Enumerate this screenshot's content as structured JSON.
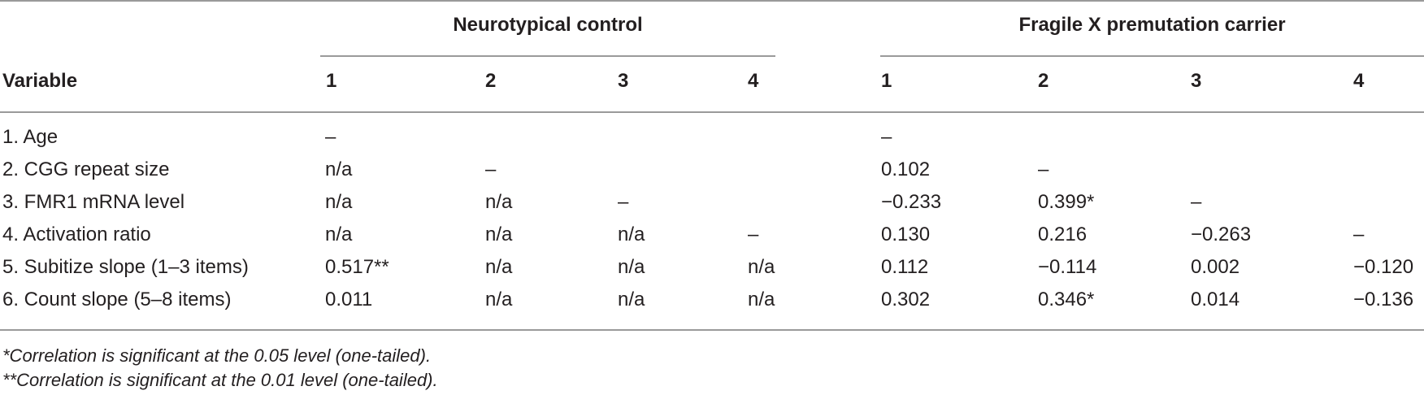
{
  "table": {
    "groups": [
      {
        "label": "Neurotypical control"
      },
      {
        "label": "Fragile X premutation carrier"
      }
    ],
    "variable_header": "Variable",
    "column_numbers": [
      "1",
      "2",
      "3",
      "4",
      "1",
      "2",
      "3",
      "4"
    ],
    "rows": [
      {
        "label": "1.  Age",
        "cells": [
          "–",
          "",
          "",
          "",
          "–",
          "",
          "",
          ""
        ]
      },
      {
        "label": "2.  CGG repeat size",
        "cells": [
          "n/a",
          "–",
          "",
          "",
          "0.102",
          "–",
          "",
          ""
        ]
      },
      {
        "label": "3.  FMR1 mRNA level",
        "cells": [
          "n/a",
          "n/a",
          "–",
          "",
          "−0.233",
          "0.399*",
          "–",
          ""
        ]
      },
      {
        "label": "4.  Activation ratio",
        "cells": [
          "n/a",
          "n/a",
          "n/a",
          "–",
          "0.130",
          "0.216",
          "−0.263",
          "–"
        ]
      },
      {
        "label": "5.  Subitize slope (1–3 items)",
        "cells": [
          "0.517**",
          "n/a",
          "n/a",
          "n/a",
          "0.112",
          "−0.114",
          "0.002",
          "−0.120"
        ]
      },
      {
        "label": "6.  Count slope (5–8 items)",
        "cells": [
          "0.011",
          "n/a",
          "n/a",
          "n/a",
          "0.302",
          "0.346*",
          "0.014",
          "−0.136"
        ]
      }
    ]
  },
  "footnotes": [
    "*Correlation is significant at the 0.05 level (one-tailed).",
    "**Correlation is significant at the 0.01 level (one-tailed)."
  ]
}
